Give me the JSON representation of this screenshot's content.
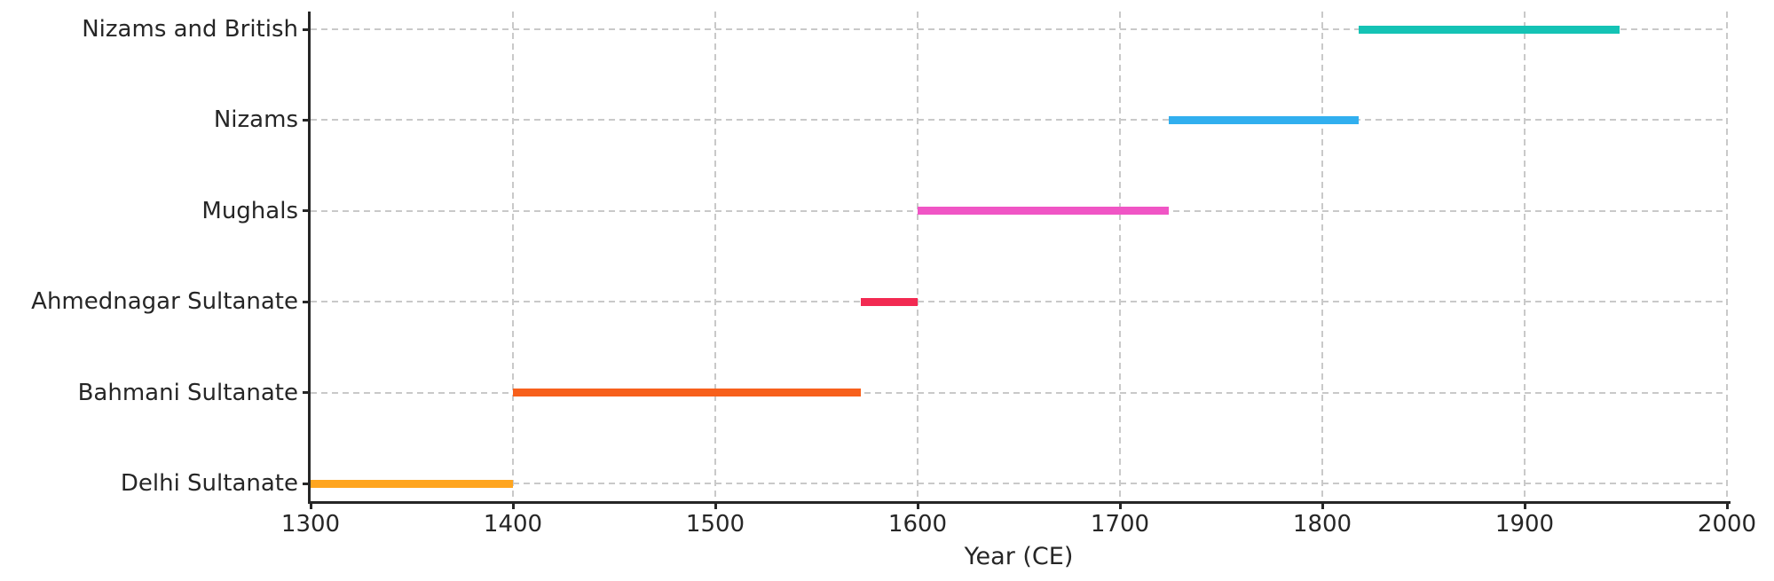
{
  "figure": {
    "background_color": "#ffffff",
    "text_color": "#262626",
    "grid_color": "#c9c9c9",
    "spine_color": "#262626"
  },
  "chart_data": {
    "type": "bar",
    "subtype": "horizontal-timeline-gantt",
    "orientation": "horizontal",
    "title": "",
    "xlabel": "Year (CE)",
    "ylabel": "",
    "xlim": [
      1300,
      2000
    ],
    "x_ticks": [
      1300,
      1400,
      1500,
      1600,
      1700,
      1800,
      1900,
      2000
    ],
    "grid": true,
    "grid_style": "dashed",
    "legend_position": "none",
    "categories_top_to_bottom": [
      "Nizams and British",
      "Nizams",
      "Mughals",
      "Ahmednagar Sultanate",
      "Bahmani Sultanate",
      "Delhi Sultanate"
    ],
    "rows": [
      {
        "label": "Nizams and British",
        "start": 1818,
        "end": 1947,
        "color": "#14C3B5"
      },
      {
        "label": "Nizams",
        "start": 1724,
        "end": 1818,
        "color": "#31AFEF"
      },
      {
        "label": "Mughals",
        "start": 1600,
        "end": 1724,
        "color": "#F055C5"
      },
      {
        "label": "Ahmednagar Sultanate",
        "start": 1572,
        "end": 1600,
        "color": "#F22A52"
      },
      {
        "label": "Bahmani Sultanate",
        "start": 1400,
        "end": 1572,
        "color": "#F7601C"
      },
      {
        "label": "Delhi Sultanate",
        "start": 1300,
        "end": 1400,
        "color": "#FFA51F"
      }
    ]
  }
}
